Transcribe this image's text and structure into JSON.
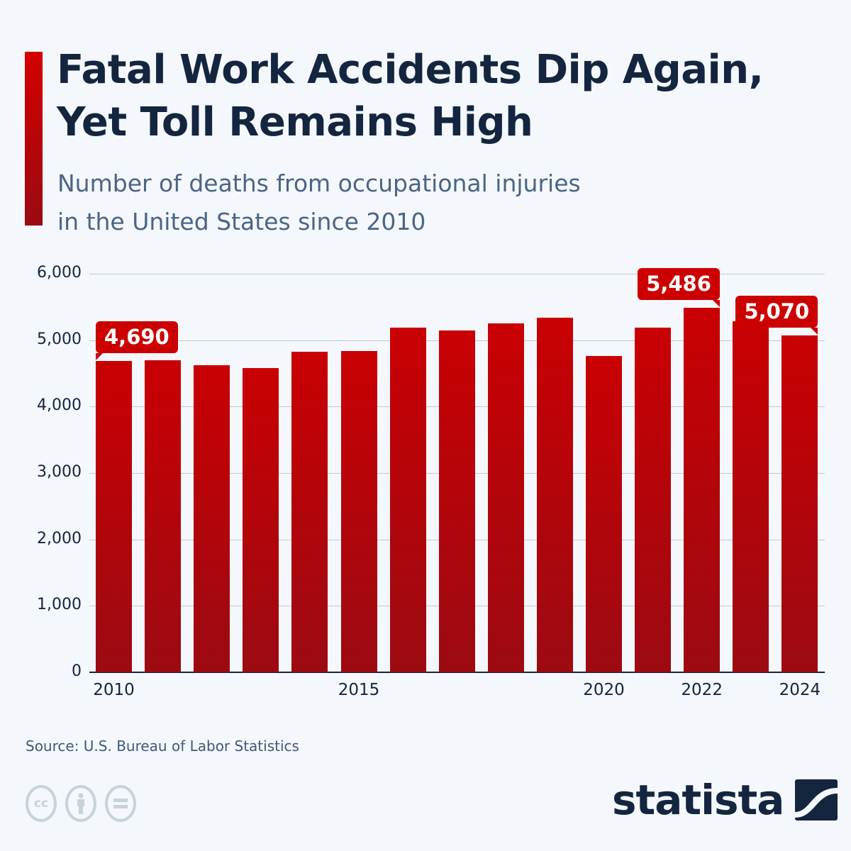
{
  "header": {
    "title_line1": "Fatal Work Accidents Dip Again,",
    "title_line2": "Yet Toll Remains High",
    "subtitle_line1": "Number of deaths from occupational injuries",
    "subtitle_line2": "in the United States since 2010"
  },
  "colors": {
    "bar_top": "#c90003",
    "bar_bottom": "#9c0a12",
    "callout": "#cc0000",
    "title": "#13253f",
    "subtitle": "#4a6585",
    "background": "#f4f7fb"
  },
  "chart_data": {
    "type": "bar",
    "title": "Fatal Work Accidents Dip Again, Yet Toll Remains High",
    "subtitle": "Number of deaths from occupational injuries in the United States since 2010",
    "categories": [
      "2010",
      "2011",
      "2012",
      "2013",
      "2014",
      "2015",
      "2016",
      "2017",
      "2018",
      "2019",
      "2020",
      "2021",
      "2022",
      "2023",
      "2024"
    ],
    "values": [
      4690,
      4693,
      4628,
      4585,
      4821,
      4836,
      5190,
      5147,
      5250,
      5333,
      4764,
      5190,
      5486,
      5283,
      5070
    ],
    "xlabel": "",
    "ylabel": "",
    "ylim": [
      0,
      6000
    ],
    "yticks": [
      "0",
      "1,000",
      "2,000",
      "3,000",
      "4,000",
      "5,000",
      "6,000"
    ],
    "xtick_labels": [
      {
        "label": "2010",
        "index": 0
      },
      {
        "label": "2015",
        "index": 5
      },
      {
        "label": "2020",
        "index": 10
      },
      {
        "label": "2022",
        "index": 12
      },
      {
        "label": "2024",
        "index": 14
      }
    ],
    "annotations": [
      {
        "index": 0,
        "label": "4,690"
      },
      {
        "index": 12,
        "label": "5,486"
      },
      {
        "index": 14,
        "label": "5,070"
      }
    ],
    "grid": true,
    "legend": "none"
  },
  "footer": {
    "source": "Source: U.S. Bureau of Labor Statistics",
    "license_icons": [
      "cc-icon",
      "attribution-icon",
      "no-derivatives-icon"
    ],
    "cc_label": "cc",
    "brand": "statista"
  }
}
